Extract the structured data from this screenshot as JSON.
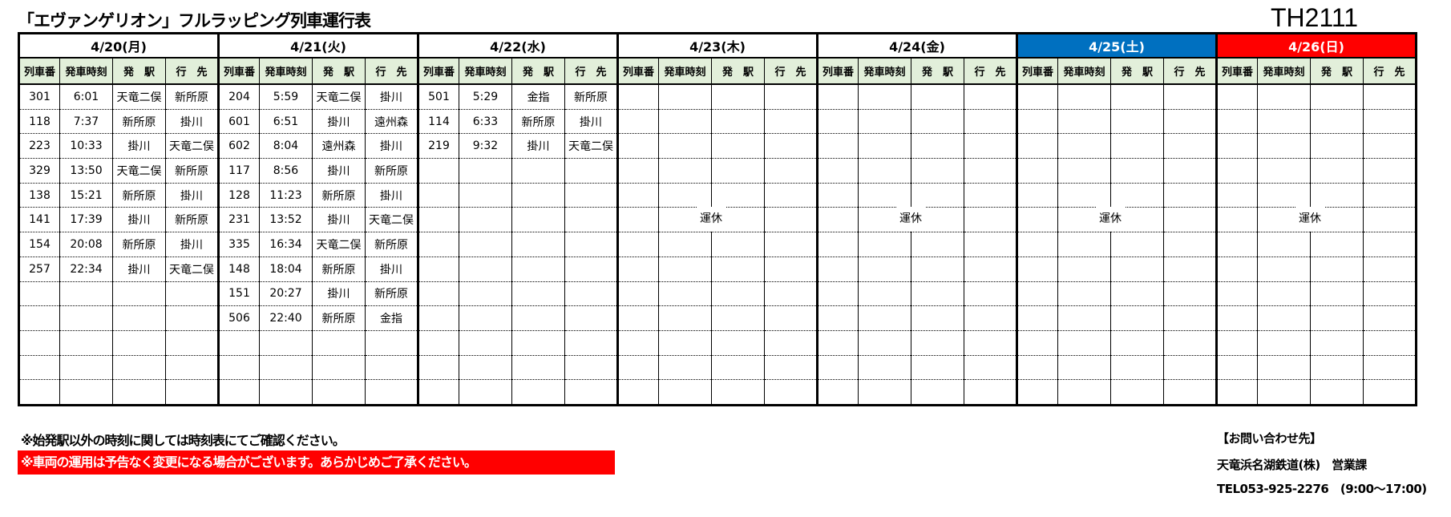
{
  "title": "「エヴァンゲリオン」フルラッピング列車運行表",
  "code": "TH2111",
  "columns": [
    "列車番",
    "発車時刻",
    "発　駅",
    "行　先"
  ],
  "days": [
    {
      "label": "4/20(月)",
      "bg": "#FFFFFF",
      "fg": "#000000",
      "suspended": "",
      "rows": [
        [
          "301",
          "6:01",
          "天竜二俣",
          "新所原"
        ],
        [
          "118",
          "7:37",
          "新所原",
          "掛川"
        ],
        [
          "223",
          "10:33",
          "掛川",
          "天竜二俣"
        ],
        [
          "329",
          "13:50",
          "天竜二俣",
          "新所原"
        ],
        [
          "138",
          "15:21",
          "新所原",
          "掛川"
        ],
        [
          "141",
          "17:39",
          "掛川",
          "新所原"
        ],
        [
          "154",
          "20:08",
          "新所原",
          "掛川"
        ],
        [
          "257",
          "22:34",
          "掛川",
          "天竜二俣"
        ]
      ]
    },
    {
      "label": "4/21(火)",
      "bg": "#FFFFFF",
      "fg": "#000000",
      "suspended": "",
      "rows": [
        [
          "204",
          "5:59",
          "天竜二俣",
          "掛川"
        ],
        [
          "601",
          "6:51",
          "掛川",
          "遠州森"
        ],
        [
          "602",
          "8:04",
          "遠州森",
          "掛川"
        ],
        [
          "117",
          "8:56",
          "掛川",
          "新所原"
        ],
        [
          "128",
          "11:23",
          "新所原",
          "掛川"
        ],
        [
          "231",
          "13:52",
          "掛川",
          "天竜二俣"
        ],
        [
          "335",
          "16:34",
          "天竜二俣",
          "新所原"
        ],
        [
          "148",
          "18:04",
          "新所原",
          "掛川"
        ],
        [
          "151",
          "20:27",
          "掛川",
          "新所原"
        ],
        [
          "506",
          "22:40",
          "新所原",
          "金指"
        ]
      ]
    },
    {
      "label": "4/22(水)",
      "bg": "#FFFFFF",
      "fg": "#000000",
      "suspended": "",
      "rows": [
        [
          "501",
          "5:29",
          "金指",
          "新所原"
        ],
        [
          "114",
          "6:33",
          "新所原",
          "掛川"
        ],
        [
          "219",
          "9:32",
          "掛川",
          "天竜二俣"
        ]
      ]
    },
    {
      "label": "4/23(木)",
      "bg": "#FFFFFF",
      "fg": "#000000",
      "suspended": "運休",
      "rows": []
    },
    {
      "label": "4/24(金)",
      "bg": "#FFFFFF",
      "fg": "#000000",
      "suspended": "運休",
      "rows": []
    },
    {
      "label": "4/25(土)",
      "bg": "#0070C0",
      "fg": "#FFFFFF",
      "suspended": "運休",
      "rows": []
    },
    {
      "label": "4/26(日)",
      "bg": "#FF0000",
      "fg": "#FFFFFF",
      "suspended": "運休",
      "rows": []
    }
  ],
  "notes": {
    "note1": "※始発駅以外の時刻に関しては時刻表にてご確認ください。",
    "note2": "※車両の運用は予告なく変更になる場合がございます。あらかじめご了承ください。"
  },
  "contact": {
    "heading": "【お問い合わせ先】",
    "company": "天竜浜名湖鉄道(株)　営業課",
    "phone": "TEL053-925-2276　(9:00～17:00)"
  }
}
